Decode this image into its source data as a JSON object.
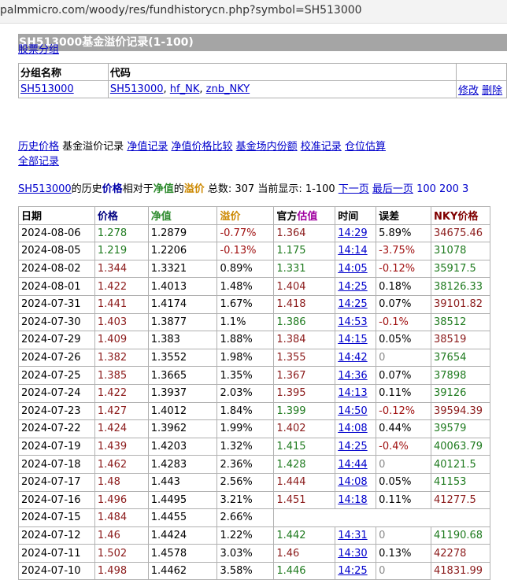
{
  "browser": {
    "url": "palmmicro.com/woody/res/fundhistorycn.php?symbol=SH513000"
  },
  "page": {
    "title": "SH513000基金溢价记录(1-100)",
    "stock_group_link": "股票分组"
  },
  "group_table": {
    "headers": [
      "分组名称",
      "代码"
    ],
    "group_name": "SH513000",
    "codes": [
      "SH513000",
      "hf_NK",
      "znb_NKY"
    ],
    "actions": [
      "修改",
      "删除"
    ]
  },
  "nav": {
    "plain_current": "基金溢价记录",
    "links": [
      "历史价格",
      "净值记录",
      "净值价格比较",
      "基金场内份额",
      "校准记录",
      "仓位估算",
      "全部记录"
    ]
  },
  "summary": {
    "symbol": "SH513000",
    "t1": "的历史",
    "price_word": "价格",
    "t2": "相对于",
    "nav_word": "净值",
    "t3": "的",
    "premium_word": "溢价",
    "t4": " 总数: 307 当前显示: 1-100 ",
    "next_page": "下一页",
    "last_page": "最后一页",
    "page_100": "100",
    "page_200": "200",
    "page_300": "3"
  },
  "table": {
    "headers": {
      "date": "日期",
      "price": "价格",
      "nav": "净值",
      "premium": "溢价",
      "official_prefix": "官方",
      "official_suffix": "估值",
      "time": "时间",
      "error": "误差",
      "nky": "NKY价格"
    },
    "rows": [
      {
        "date": "2024-08-06",
        "price": "1.278",
        "nav": "1.2879",
        "premium": "-0.77%",
        "official": "1.364",
        "time": "14:29",
        "error": "5.89%",
        "nky": "34675.46",
        "pc": "down",
        "oc": "up",
        "ec": "pos",
        "nc": "up"
      },
      {
        "date": "2024-08-05",
        "price": "1.219",
        "nav": "1.2206",
        "premium": "-0.13%",
        "official": "1.175",
        "time": "14:14",
        "error": "-3.75%",
        "nky": "31078",
        "pc": "down",
        "oc": "down",
        "ec": "neg",
        "nc": "down"
      },
      {
        "date": "2024-08-02",
        "price": "1.344",
        "nav": "1.3321",
        "premium": "0.89%",
        "official": "1.331",
        "time": "14:05",
        "error": "-0.12%",
        "nky": "35917.5",
        "pc": "up",
        "oc": "down",
        "ec": "neg",
        "nc": "down"
      },
      {
        "date": "2024-08-01",
        "price": "1.422",
        "nav": "1.4013",
        "premium": "1.48%",
        "official": "1.404",
        "time": "14:25",
        "error": "0.18%",
        "nky": "38126.33",
        "pc": "up",
        "oc": "up",
        "ec": "pos",
        "nc": "down"
      },
      {
        "date": "2024-07-31",
        "price": "1.441",
        "nav": "1.4174",
        "premium": "1.67%",
        "official": "1.418",
        "time": "14:25",
        "error": "0.07%",
        "nky": "39101.82",
        "pc": "up",
        "oc": "up",
        "ec": "pos",
        "nc": "up"
      },
      {
        "date": "2024-07-30",
        "price": "1.403",
        "nav": "1.3877",
        "premium": "1.1%",
        "official": "1.386",
        "time": "14:53",
        "error": "-0.1%",
        "nky": "38512",
        "pc": "up",
        "oc": "down",
        "ec": "neg",
        "nc": "down"
      },
      {
        "date": "2024-07-29",
        "price": "1.409",
        "nav": "1.383",
        "premium": "1.88%",
        "official": "1.384",
        "time": "14:15",
        "error": "0.05%",
        "nky": "38519",
        "pc": "up",
        "oc": "up",
        "ec": "pos",
        "nc": "up"
      },
      {
        "date": "2024-07-26",
        "price": "1.382",
        "nav": "1.3552",
        "premium": "1.98%",
        "official": "1.355",
        "time": "14:42",
        "error": "0",
        "nky": "37654",
        "pc": "up",
        "oc": "up",
        "ec": "flat",
        "nc": "down"
      },
      {
        "date": "2024-07-25",
        "price": "1.385",
        "nav": "1.3665",
        "premium": "1.35%",
        "official": "1.367",
        "time": "14:36",
        "error": "0.07%",
        "nky": "37898",
        "pc": "up",
        "oc": "up",
        "ec": "pos",
        "nc": "down"
      },
      {
        "date": "2024-07-24",
        "price": "1.422",
        "nav": "1.3937",
        "premium": "2.03%",
        "official": "1.395",
        "time": "14:13",
        "error": "0.11%",
        "nky": "39126",
        "pc": "up",
        "oc": "up",
        "ec": "pos",
        "nc": "down"
      },
      {
        "date": "2024-07-23",
        "price": "1.427",
        "nav": "1.4012",
        "premium": "1.84%",
        "official": "1.399",
        "time": "14:50",
        "error": "-0.12%",
        "nky": "39594.39",
        "pc": "up",
        "oc": "down",
        "ec": "neg",
        "nc": "up"
      },
      {
        "date": "2024-07-22",
        "price": "1.424",
        "nav": "1.3962",
        "premium": "1.99%",
        "official": "1.402",
        "time": "14:08",
        "error": "0.44%",
        "nky": "39579",
        "pc": "up",
        "oc": "up",
        "ec": "pos",
        "nc": "down"
      },
      {
        "date": "2024-07-19",
        "price": "1.439",
        "nav": "1.4203",
        "premium": "1.32%",
        "official": "1.415",
        "time": "14:25",
        "error": "-0.4%",
        "nky": "40063.79",
        "pc": "up",
        "oc": "down",
        "ec": "neg",
        "nc": "down"
      },
      {
        "date": "2024-07-18",
        "price": "1.462",
        "nav": "1.4283",
        "premium": "2.36%",
        "official": "1.428",
        "time": "14:44",
        "error": "0",
        "nky": "40121.5",
        "pc": "up",
        "oc": "down",
        "ec": "flat",
        "nc": "down"
      },
      {
        "date": "2024-07-17",
        "price": "1.48",
        "nav": "1.443",
        "premium": "2.56%",
        "official": "1.444",
        "time": "14:08",
        "error": "0.05%",
        "nky": "41153",
        "pc": "up",
        "oc": "up",
        "ec": "pos",
        "nc": "down"
      },
      {
        "date": "2024-07-16",
        "price": "1.496",
        "nav": "1.4495",
        "premium": "3.21%",
        "official": "1.451",
        "time": "14:18",
        "error": "0.11%",
        "nky": "41277.5",
        "pc": "up",
        "oc": "up",
        "ec": "pos",
        "nc": "up"
      },
      {
        "date": "2024-07-15",
        "price": "1.484",
        "nav": "1.4455",
        "premium": "2.66%",
        "official": "",
        "time": "",
        "error": "",
        "nky": "",
        "pc": "up",
        "oc": "up",
        "ec": "pos",
        "nc": "up",
        "empty": true
      },
      {
        "date": "2024-07-12",
        "price": "1.46",
        "nav": "1.4424",
        "premium": "1.22%",
        "official": "1.442",
        "time": "14:31",
        "error": "0",
        "nky": "41190.68",
        "pc": "up",
        "oc": "down",
        "ec": "flat",
        "nc": "down"
      },
      {
        "date": "2024-07-11",
        "price": "1.502",
        "nav": "1.4578",
        "premium": "3.03%",
        "official": "1.46",
        "time": "14:30",
        "error": "0.13%",
        "nky": "42278",
        "pc": "up",
        "oc": "up",
        "ec": "pos",
        "nc": "up"
      },
      {
        "date": "2024-07-10",
        "price": "1.498",
        "nav": "1.4462",
        "premium": "3.58%",
        "official": "1.446",
        "time": "14:25",
        "error": "0",
        "nky": "41831.99",
        "pc": "up",
        "oc": "down",
        "ec": "flat",
        "nc": "up"
      }
    ]
  }
}
